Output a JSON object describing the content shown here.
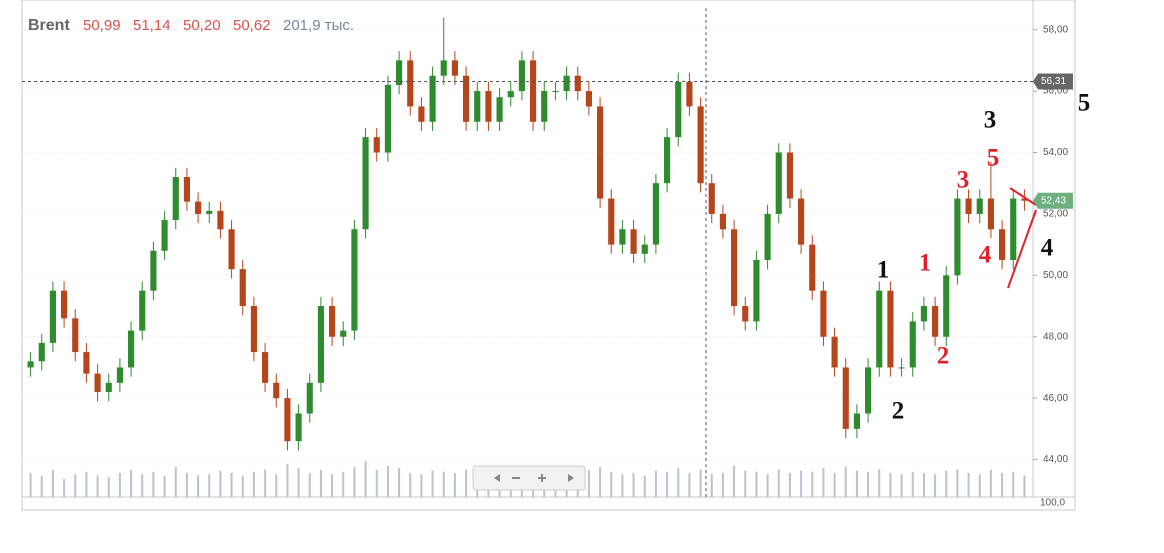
{
  "chart_data": {
    "type": "candlestick",
    "title": "Brent",
    "quote": [
      "50,99",
      "51,14",
      "50,20",
      "50,62"
    ],
    "volume_text": "201,9 тыс.",
    "price_tags": [
      {
        "value": 56.31,
        "label": "56,31"
      },
      {
        "value": 52.43,
        "label": "52,43"
      }
    ],
    "volume_label": "100,0",
    "ylim": [
      43.4,
      58.5
    ],
    "yticks": [
      {
        "value": 58,
        "label": "58,00"
      },
      {
        "value": 56,
        "label": "56,00"
      },
      {
        "value": 54,
        "label": "54,00"
      },
      {
        "value": 52,
        "label": "52,00"
      },
      {
        "value": 50,
        "label": "50,00"
      },
      {
        "value": 48,
        "label": "48,00"
      },
      {
        "value": 46,
        "label": "46,00"
      },
      {
        "value": 44,
        "label": "44,00"
      }
    ],
    "up_color": "#2e8b2e",
    "down_color": "#b5451b",
    "volume_color": "#b9c2cf",
    "open": [
      47.0,
      47.2,
      47.8,
      49.5,
      48.6,
      47.5,
      46.8,
      46.2,
      46.5,
      47.0,
      48.2,
      49.5,
      50.8,
      51.8,
      53.2,
      52.4,
      52.0,
      52.1,
      51.5,
      50.2,
      49.0,
      47.5,
      46.5,
      46.0,
      44.6,
      45.5,
      46.5,
      49.0,
      48.0,
      48.2,
      51.5,
      54.5,
      54.0,
      56.2,
      57.0,
      55.5,
      55.0,
      56.5,
      57.0,
      56.5,
      55.0,
      56.0,
      55.0,
      55.8,
      56.0,
      57.0,
      55.0,
      56.0,
      56.0,
      56.5,
      56.0,
      55.5,
      52.5,
      51.0,
      51.5,
      50.7,
      51.0,
      53.0,
      54.5,
      56.3,
      55.5,
      53.0,
      52.0,
      51.5,
      49.0,
      48.5,
      50.5,
      52.0,
      54.0,
      52.5,
      51.0,
      49.5,
      48.0,
      47.0,
      45.0,
      45.5,
      47.0,
      49.5,
      47.0,
      47.0,
      48.5,
      49.0,
      48.0,
      50.0,
      52.5,
      52.0,
      52.5,
      51.5,
      50.5,
      52.5
    ],
    "high": [
      47.5,
      48.1,
      49.8,
      49.8,
      48.9,
      47.8,
      47.1,
      46.8,
      47.3,
      48.5,
      49.8,
      51.1,
      52.1,
      53.5,
      53.5,
      52.7,
      52.4,
      52.4,
      51.8,
      50.5,
      49.3,
      47.8,
      46.8,
      46.3,
      45.8,
      46.8,
      49.3,
      49.3,
      48.5,
      51.8,
      54.8,
      54.8,
      56.5,
      57.3,
      57.3,
      55.8,
      56.8,
      58.4,
      57.3,
      56.8,
      56.3,
      56.3,
      56.1,
      56.3,
      57.3,
      57.3,
      56.3,
      56.3,
      56.8,
      56.8,
      56.3,
      55.8,
      52.8,
      51.8,
      51.8,
      51.3,
      53.3,
      54.8,
      56.6,
      56.6,
      55.8,
      53.3,
      52.3,
      51.8,
      49.3,
      50.8,
      52.3,
      54.3,
      54.3,
      52.8,
      51.3,
      49.8,
      48.3,
      47.3,
      45.8,
      47.3,
      49.8,
      49.8,
      47.3,
      48.8,
      49.3,
      49.3,
      50.3,
      52.8,
      52.8,
      52.8,
      53.7,
      51.8,
      52.8,
      52.8
    ],
    "low": [
      46.7,
      46.9,
      47.5,
      48.3,
      47.2,
      46.5,
      45.9,
      45.9,
      46.2,
      46.7,
      47.9,
      49.2,
      50.5,
      51.5,
      52.1,
      51.7,
      51.7,
      51.2,
      49.9,
      48.7,
      47.2,
      46.2,
      45.7,
      44.3,
      44.3,
      45.2,
      46.2,
      47.7,
      47.7,
      47.9,
      51.2,
      53.7,
      53.7,
      55.9,
      55.2,
      54.7,
      54.7,
      56.2,
      56.2,
      54.7,
      54.7,
      54.7,
      54.7,
      55.5,
      55.7,
      54.7,
      54.7,
      55.7,
      55.7,
      55.7,
      55.2,
      52.2,
      50.7,
      50.7,
      50.4,
      50.4,
      50.7,
      52.7,
      54.2,
      55.2,
      52.7,
      51.7,
      51.2,
      48.7,
      48.2,
      48.2,
      50.2,
      51.7,
      52.2,
      50.7,
      49.2,
      47.7,
      46.7,
      44.7,
      44.7,
      45.2,
      46.7,
      46.7,
      46.7,
      46.7,
      48.2,
      47.7,
      47.7,
      49.7,
      51.7,
      51.7,
      51.2,
      50.2,
      50.2,
      52.1
    ],
    "close": [
      47.2,
      47.8,
      49.5,
      48.6,
      47.5,
      46.8,
      46.2,
      46.5,
      47.0,
      48.2,
      49.5,
      50.8,
      51.8,
      53.2,
      52.4,
      52.0,
      52.1,
      51.5,
      50.2,
      49.0,
      47.5,
      46.5,
      46.0,
      44.6,
      45.5,
      46.5,
      49.0,
      48.0,
      48.2,
      51.5,
      54.5,
      54.0,
      56.2,
      57.0,
      55.5,
      55.0,
      56.5,
      57.0,
      56.5,
      55.0,
      56.0,
      55.0,
      55.8,
      56.0,
      57.0,
      55.0,
      56.0,
      56.0,
      56.5,
      56.0,
      55.5,
      52.5,
      51.0,
      51.5,
      50.7,
      51.0,
      53.0,
      54.5,
      56.3,
      55.5,
      53.0,
      52.0,
      51.5,
      49.0,
      48.5,
      50.5,
      52.0,
      54.0,
      52.5,
      51.0,
      49.5,
      48.0,
      47.0,
      45.0,
      45.5,
      47.0,
      49.5,
      47.0,
      47.0,
      48.5,
      49.0,
      48.0,
      50.0,
      52.5,
      52.0,
      52.5,
      51.5,
      50.5,
      52.5,
      52.43
    ],
    "volume": [
      40,
      35,
      45,
      30,
      38,
      42,
      36,
      33,
      40,
      45,
      38,
      42,
      35,
      50,
      40,
      36,
      38,
      44,
      40,
      35,
      42,
      46,
      38,
      55,
      48,
      40,
      45,
      38,
      42,
      50,
      60,
      45,
      52,
      48,
      40,
      38,
      44,
      42,
      40,
      46,
      38,
      35,
      40,
      42,
      44,
      40,
      36,
      38,
      42,
      40,
      45,
      50,
      42,
      38,
      40,
      36,
      44,
      42,
      48,
      40,
      46,
      38,
      40,
      52,
      44,
      42,
      38,
      46,
      40,
      44,
      42,
      48,
      40,
      50,
      44,
      42,
      46,
      40,
      38,
      42,
      40,
      38,
      44,
      46,
      40,
      38,
      45,
      40,
      42,
      36
    ],
    "annotations": [
      {
        "label": "1",
        "color": "#111111"
      },
      {
        "label": "2",
        "color": "#111111"
      },
      {
        "label": "3",
        "color": "#111111"
      },
      {
        "label": "4",
        "color": "#111111"
      },
      {
        "label": "5",
        "color": "#111111"
      },
      {
        "label": "1",
        "color": "#e0202a"
      },
      {
        "label": "2",
        "color": "#e0202a"
      },
      {
        "label": "3",
        "color": "#e0202a"
      },
      {
        "label": "4",
        "color": "#e0202a"
      },
      {
        "label": "5",
        "color": "#e0202a"
      }
    ]
  }
}
